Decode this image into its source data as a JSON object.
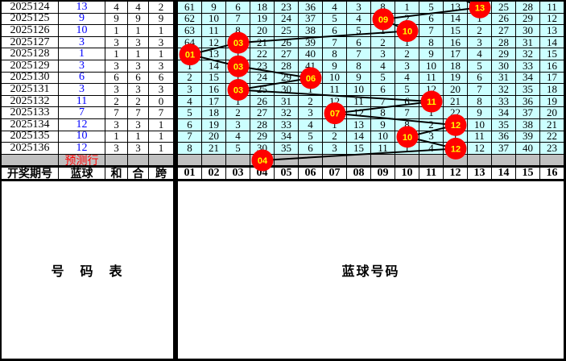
{
  "colors": {
    "cell_bg": "#ccffff",
    "pred_bg": "#c0c0c0",
    "pred_text": "#ff0000",
    "blue_text": "#0000ff",
    "circle_fill": "#ff0000",
    "circle_text": "#ffff00",
    "line": "#000000",
    "grid_line": "#000000"
  },
  "chart_data": {
    "type": "table",
    "left_headers": [
      "开奖期号",
      "蓝球",
      "和",
      "合",
      "跨"
    ],
    "ball_headers": [
      "01",
      "02",
      "03",
      "04",
      "05",
      "06",
      "07",
      "08",
      "09",
      "10",
      "11",
      "12",
      "13",
      "14",
      "15",
      "16"
    ],
    "bottom_left_label": "号　码　表",
    "bottom_right_label": "蓝球号码",
    "rows": [
      {
        "period": "2025124",
        "blue": "13",
        "sum": "4",
        "combo": "4",
        "span": "2",
        "ball_col": 13,
        "cells": [
          "61",
          "9",
          "6",
          "18",
          "23",
          "36",
          "4",
          "3",
          "8",
          "1",
          "5",
          "13",
          "",
          "25",
          "28",
          "11"
        ]
      },
      {
        "period": "2025125",
        "blue": "9",
        "sum": "9",
        "combo": "9",
        "span": "9",
        "ball_col": 9,
        "cells": [
          "62",
          "10",
          "7",
          "19",
          "24",
          "37",
          "5",
          "4",
          "",
          "2",
          "6",
          "14",
          "1",
          "26",
          "29",
          "12"
        ]
      },
      {
        "period": "2025126",
        "blue": "10",
        "sum": "1",
        "combo": "1",
        "span": "1",
        "ball_col": 10,
        "cells": [
          "63",
          "11",
          "8",
          "20",
          "25",
          "38",
          "6",
          "5",
          "1",
          "",
          "7",
          "15",
          "2",
          "27",
          "30",
          "13"
        ]
      },
      {
        "period": "2025127",
        "blue": "3",
        "sum": "3",
        "combo": "3",
        "span": "3",
        "ball_col": 3,
        "cells": [
          "64",
          "12",
          "",
          "21",
          "26",
          "39",
          "7",
          "6",
          "2",
          "1",
          "8",
          "16",
          "3",
          "28",
          "31",
          "14"
        ]
      },
      {
        "period": "2025128",
        "blue": "1",
        "sum": "1",
        "combo": "1",
        "span": "1",
        "ball_col": 1,
        "cells": [
          "",
          "13",
          "1",
          "22",
          "27",
          "40",
          "8",
          "7",
          "3",
          "2",
          "9",
          "17",
          "4",
          "29",
          "32",
          "15"
        ]
      },
      {
        "period": "2025129",
        "blue": "3",
        "sum": "3",
        "combo": "3",
        "span": "3",
        "ball_col": 3,
        "cells": [
          "1",
          "14",
          "",
          "23",
          "28",
          "41",
          "9",
          "8",
          "4",
          "3",
          "10",
          "18",
          "5",
          "30",
          "33",
          "16"
        ]
      },
      {
        "period": "2025130",
        "blue": "6",
        "sum": "6",
        "combo": "6",
        "span": "6",
        "ball_col": 6,
        "cells": [
          "2",
          "15",
          "1",
          "24",
          "29",
          "",
          "10",
          "9",
          "5",
          "4",
          "11",
          "19",
          "6",
          "31",
          "34",
          "17"
        ]
      },
      {
        "period": "2025131",
        "blue": "3",
        "sum": "3",
        "combo": "3",
        "span": "3",
        "ball_col": 3,
        "cells": [
          "3",
          "16",
          "",
          "25",
          "30",
          "1",
          "11",
          "10",
          "6",
          "5",
          "12",
          "20",
          "7",
          "32",
          "35",
          "18"
        ]
      },
      {
        "period": "2025132",
        "blue": "11",
        "sum": "2",
        "combo": "2",
        "span": "0",
        "ball_col": 11,
        "cells": [
          "4",
          "17",
          "1",
          "26",
          "31",
          "2",
          "12",
          "11",
          "7",
          "6",
          "",
          "21",
          "8",
          "33",
          "36",
          "19"
        ]
      },
      {
        "period": "2025133",
        "blue": "7",
        "sum": "7",
        "combo": "7",
        "span": "7",
        "ball_col": 7,
        "cells": [
          "5",
          "18",
          "2",
          "27",
          "32",
          "3",
          "",
          "12",
          "8",
          "7",
          "1",
          "22",
          "9",
          "34",
          "37",
          "20"
        ]
      },
      {
        "period": "2025134",
        "blue": "12",
        "sum": "3",
        "combo": "3",
        "span": "1",
        "ball_col": 12,
        "cells": [
          "6",
          "19",
          "3",
          "28",
          "33",
          "4",
          "1",
          "13",
          "9",
          "8",
          "2",
          "",
          "10",
          "35",
          "38",
          "21"
        ]
      },
      {
        "period": "2025135",
        "blue": "10",
        "sum": "1",
        "combo": "1",
        "span": "1",
        "ball_col": 10,
        "cells": [
          "7",
          "20",
          "4",
          "29",
          "34",
          "5",
          "2",
          "14",
          "10",
          "",
          "3",
          "1",
          "11",
          "36",
          "39",
          "22"
        ]
      },
      {
        "period": "2025136",
        "blue": "12",
        "sum": "3",
        "combo": "3",
        "span": "1",
        "ball_col": 12,
        "cells": [
          "8",
          "21",
          "5",
          "30",
          "35",
          "6",
          "3",
          "15",
          "11",
          "1",
          "4",
          "",
          "12",
          "37",
          "40",
          "23"
        ]
      }
    ],
    "prediction": {
      "label": "预测行",
      "ball_col": 4,
      "ball_label": "04"
    },
    "drawn_blue_sequence": [
      13,
      9,
      10,
      3,
      1,
      3,
      6,
      3,
      11,
      7,
      12,
      10,
      12
    ],
    "predicted_ball": 4
  }
}
